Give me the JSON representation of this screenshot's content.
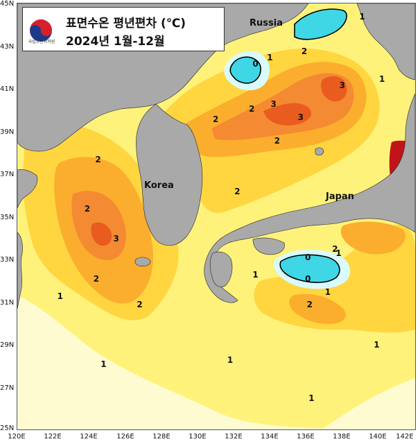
{
  "title": {
    "line1": "표면수온 평년편차 (℃)",
    "line2": "2024년 1월-12월",
    "logo_text": "국립수산과학원",
    "logo_icon": "taegeuk-icon"
  },
  "axes": {
    "lat_labels": [
      "45N",
      "43N",
      "41N",
      "39N",
      "37N",
      "35N",
      "33N",
      "31N",
      "29N",
      "27N",
      "25N"
    ],
    "lon_labels": [
      "120E",
      "122E",
      "124E",
      "126E",
      "128E",
      "130E",
      "132E",
      "134E",
      "136E",
      "138E",
      "140E",
      "142E"
    ]
  },
  "places": {
    "russia": "Russia",
    "korea": "Korea",
    "japan": "Japan"
  },
  "contour_labels": [
    {
      "text": "1",
      "lon": 139.1,
      "lat": 44.3
    },
    {
      "text": "0",
      "lon": 133.2,
      "lat": 42.1
    },
    {
      "text": "1",
      "lon": 134.0,
      "lat": 42.4
    },
    {
      "text": "2",
      "lon": 135.9,
      "lat": 42.7
    },
    {
      "text": "3",
      "lon": 138.0,
      "lat": 41.1
    },
    {
      "text": "1",
      "lon": 140.2,
      "lat": 41.4
    },
    {
      "text": "2",
      "lon": 131.0,
      "lat": 39.5
    },
    {
      "text": "2",
      "lon": 133.0,
      "lat": 40.0
    },
    {
      "text": "3",
      "lon": 134.2,
      "lat": 40.2
    },
    {
      "text": "3",
      "lon": 135.7,
      "lat": 39.6
    },
    {
      "text": "2",
      "lon": 134.4,
      "lat": 38.5
    },
    {
      "text": "2",
      "lon": 124.5,
      "lat": 37.6
    },
    {
      "text": "2",
      "lon": 132.2,
      "lat": 36.1
    },
    {
      "text": "2",
      "lon": 123.9,
      "lat": 35.3
    },
    {
      "text": "3",
      "lon": 125.5,
      "lat": 33.9
    },
    {
      "text": "2",
      "lon": 124.4,
      "lat": 32.0
    },
    {
      "text": "2",
      "lon": 126.8,
      "lat": 30.8
    },
    {
      "text": "1",
      "lon": 122.4,
      "lat": 31.2
    },
    {
      "text": "0",
      "lon": 136.1,
      "lat": 33.0
    },
    {
      "text": "0",
      "lon": 136.1,
      "lat": 32.0
    },
    {
      "text": "2",
      "lon": 137.6,
      "lat": 33.4
    },
    {
      "text": "1",
      "lon": 137.8,
      "lat": 33.2
    },
    {
      "text": "1",
      "lon": 133.2,
      "lat": 32.2
    },
    {
      "text": "1",
      "lon": 137.2,
      "lat": 31.4
    },
    {
      "text": "2",
      "lon": 136.2,
      "lat": 30.8
    },
    {
      "text": "1",
      "lon": 124.8,
      "lat": 28.0
    },
    {
      "text": "1",
      "lon": 131.8,
      "lat": 28.2
    },
    {
      "text": "1",
      "lon": 139.9,
      "lat": 28.9
    },
    {
      "text": "1",
      "lon": 136.3,
      "lat": 26.4
    }
  ],
  "colors": {
    "land": "#a9a9a9",
    "anom_neg": "#3fd6e6",
    "anom_0_to_0_5": "#d9fbff",
    "anom_0_5_to_1": "#fffbd0",
    "anom_1_to_1_5": "#fff27a",
    "anom_1_5_to_2": "#ffd640",
    "anom_2_to_2_5": "#fbae2e",
    "anom_2_5_to_3": "#f48a32",
    "anom_3_plus": "#e95b1f",
    "anom_4_plus": "#c1141a"
  }
}
